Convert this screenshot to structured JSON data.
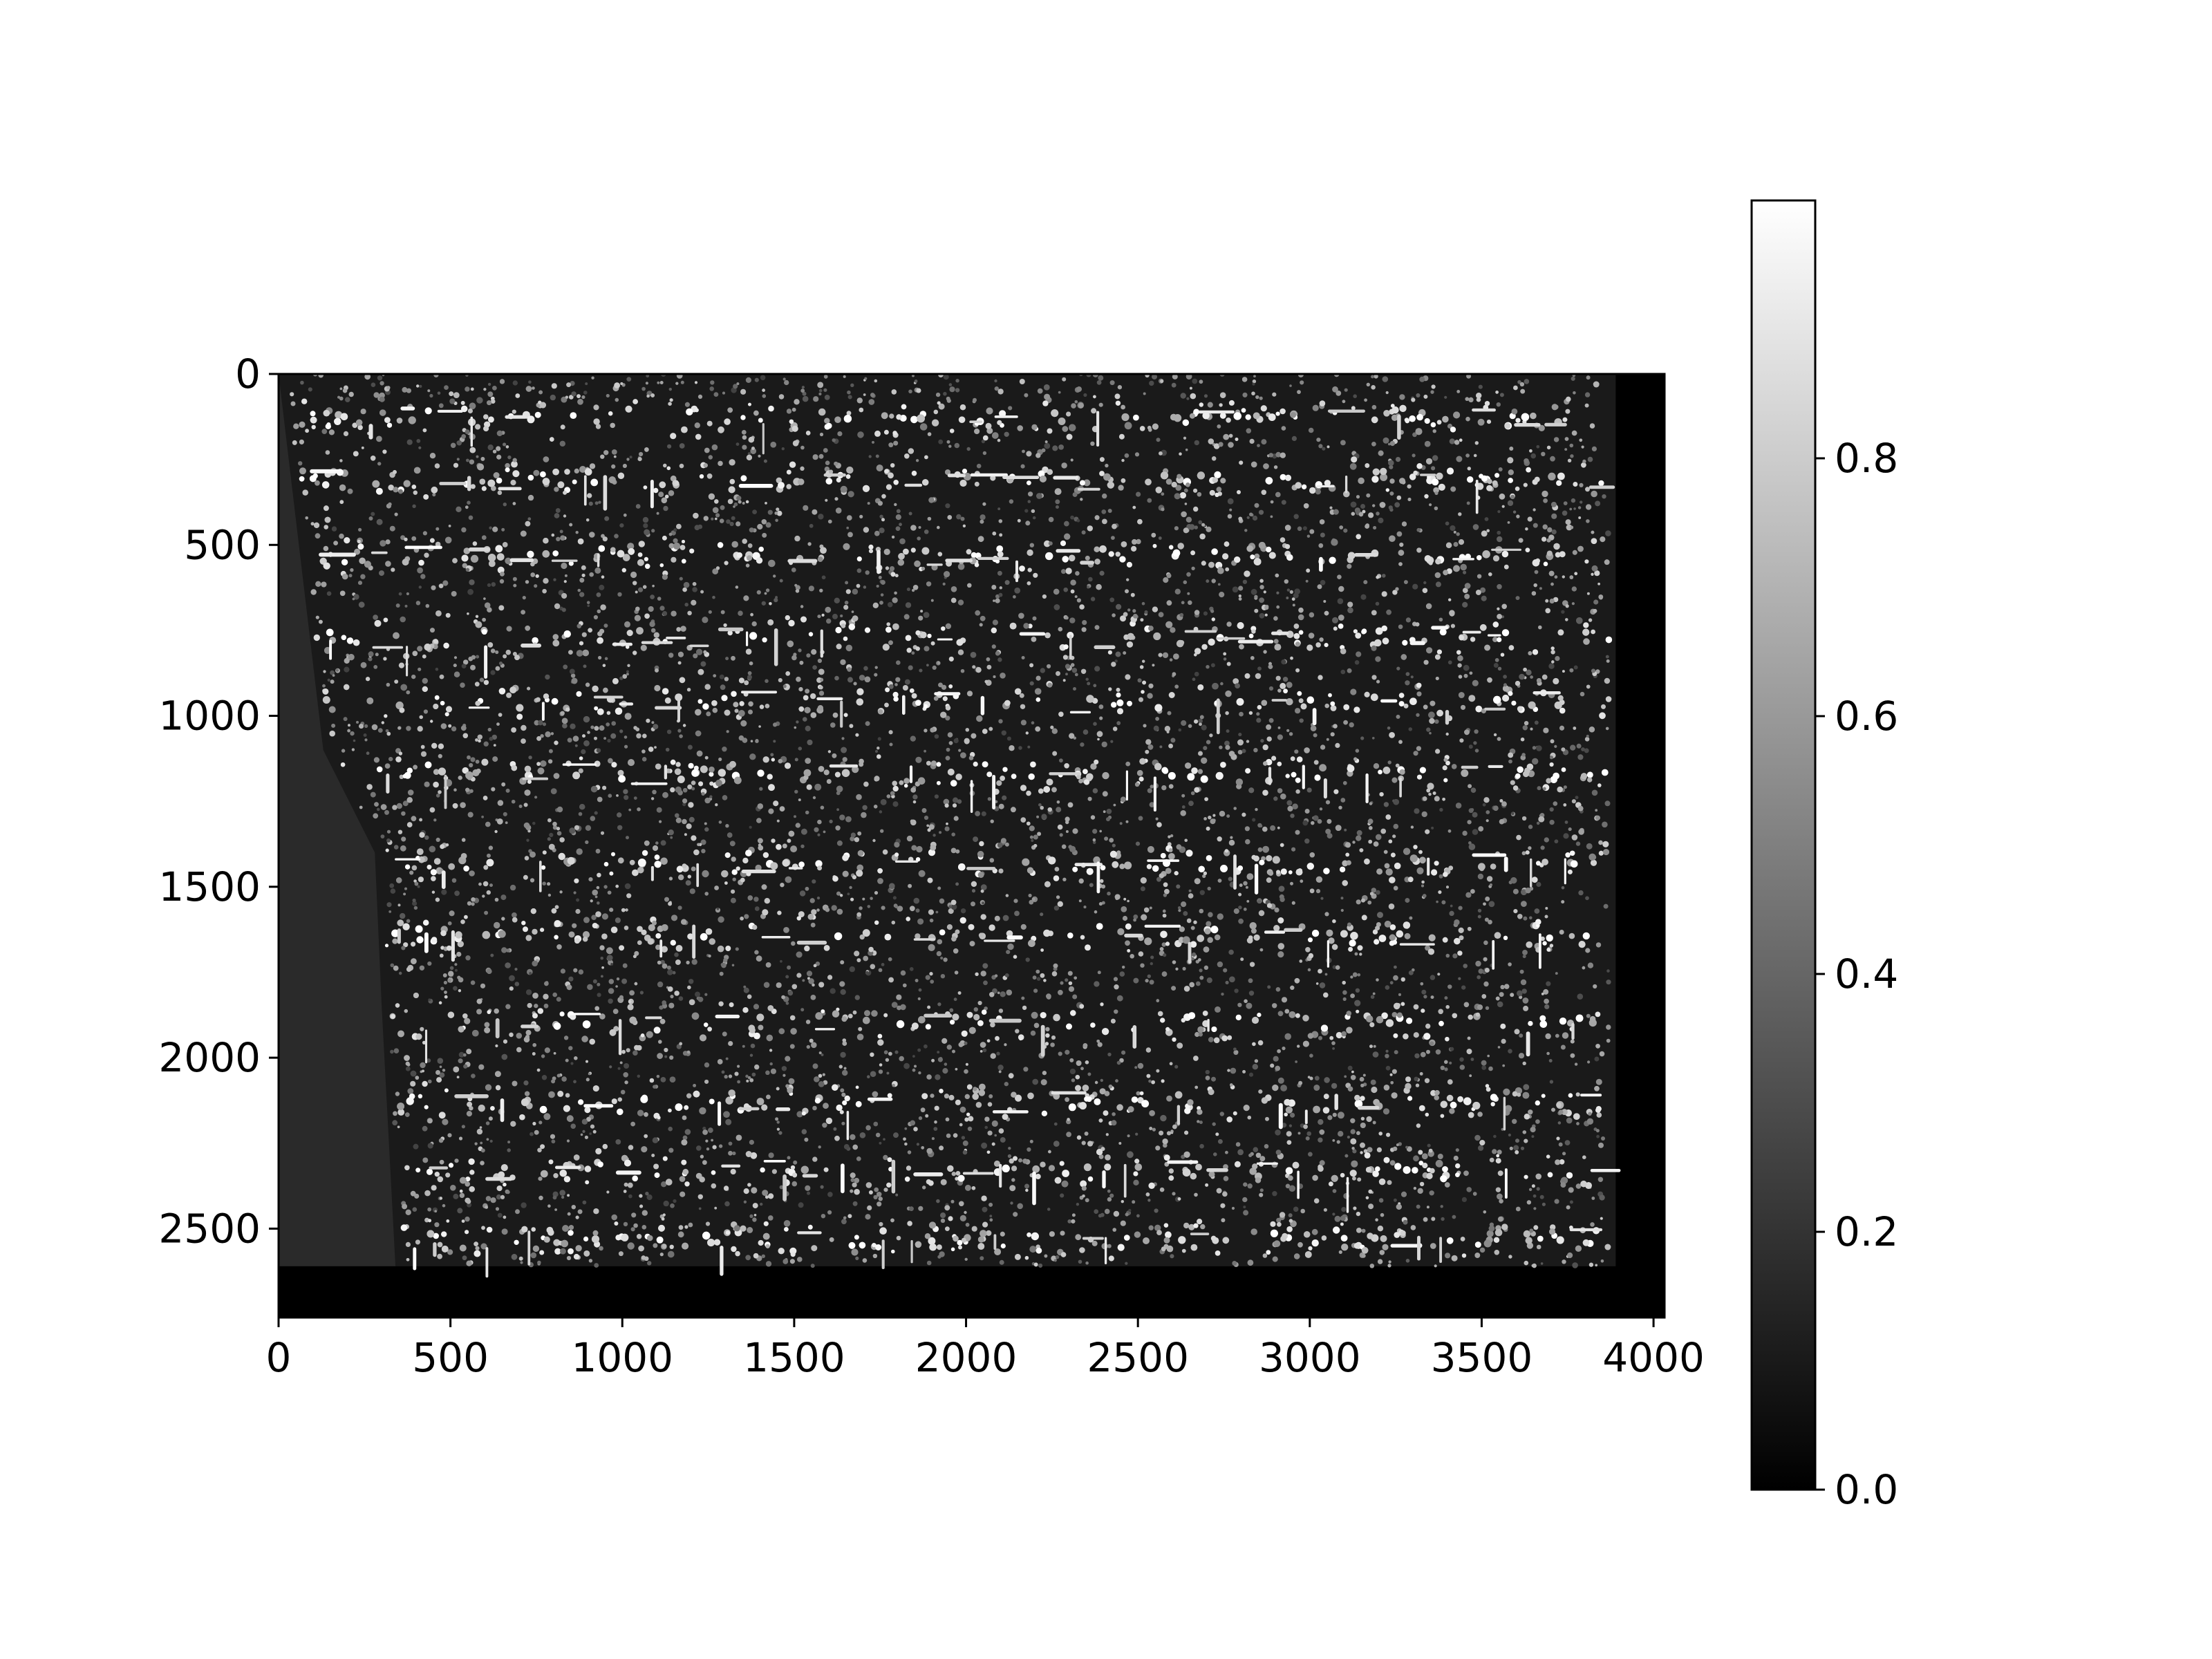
{
  "chart_data": {
    "type": "heatmap",
    "title": "",
    "xlabel": "",
    "ylabel": "",
    "xlim": [
      0,
      4032
    ],
    "ylim": [
      2760,
      0
    ],
    "x_ticks": [
      {
        "value": 0,
        "label": "0"
      },
      {
        "value": 500,
        "label": "500"
      },
      {
        "value": 1000,
        "label": "1000"
      },
      {
        "value": 1500,
        "label": "1500"
      },
      {
        "value": 2000,
        "label": "2000"
      },
      {
        "value": 2500,
        "label": "2500"
      },
      {
        "value": 3000,
        "label": "3000"
      },
      {
        "value": 3500,
        "label": "3500"
      },
      {
        "value": 4000,
        "label": "4000"
      }
    ],
    "y_ticks": [
      {
        "value": 0,
        "label": "0"
      },
      {
        "value": 500,
        "label": "500"
      },
      {
        "value": 1000,
        "label": "1000"
      },
      {
        "value": 1500,
        "label": "1500"
      },
      {
        "value": 2000,
        "label": "2000"
      },
      {
        "value": 2500,
        "label": "2500"
      }
    ],
    "colormap": "gray",
    "colorbar": {
      "range": [
        0.0,
        1.0
      ],
      "ticks": [
        {
          "value": 0.0,
          "label": "0.0"
        },
        {
          "value": 0.2,
          "label": "0.2"
        },
        {
          "value": 0.4,
          "label": "0.4"
        },
        {
          "value": 0.6,
          "label": "0.6"
        },
        {
          "value": 0.8,
          "label": "0.8"
        }
      ]
    },
    "content_extent": {
      "x_max": 3890,
      "y_max": 2610,
      "left_boundary": [
        [
          0,
          0
        ],
        [
          1100,
          130
        ],
        [
          1400,
          280
        ],
        [
          1850,
          300
        ],
        [
          2610,
          340
        ]
      ]
    },
    "text_lines_y": [
      130,
      310,
      530,
      770,
      960,
      1170,
      1430,
      1640,
      1900,
      2130,
      2330,
      2530
    ],
    "colors": {
      "background": "#000000",
      "left_panel": "#2a2a2a",
      "frame": "#000000"
    }
  }
}
